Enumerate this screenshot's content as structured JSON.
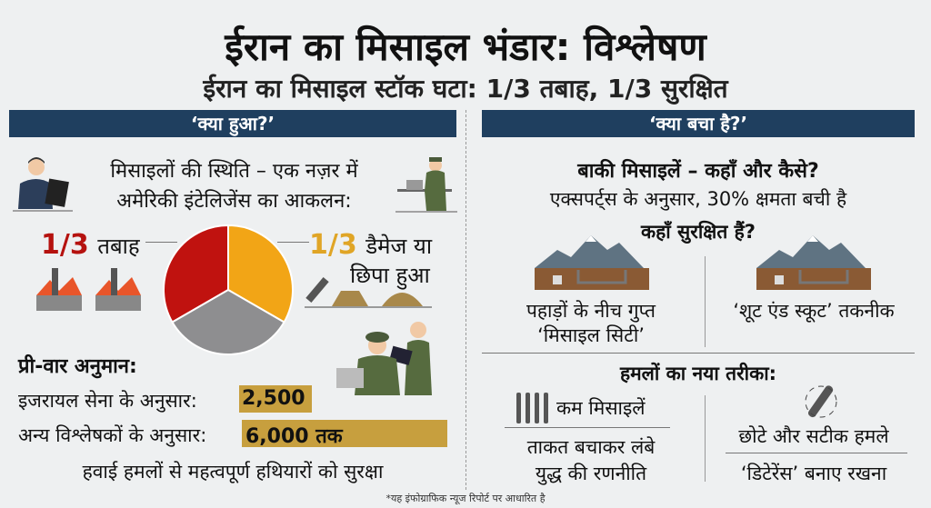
{
  "title": "ईरान का मिसाइल भंडार: विश्लेषण",
  "subtitle": "ईरान का मिसाइल स्टॉक घटा: 1/3 तबाह, 1/3 सुरक्षित",
  "left": {
    "header": "‘क्या हुआ?’",
    "heading1": "मिसाइलों की स्थिति – एक नज़र में",
    "heading2": "अमेरिकी इंटेलिजेंस का आकलन:",
    "destroyed": {
      "fraction": "1/3",
      "label": "तबाह"
    },
    "damaged": {
      "fraction": "1/3",
      "label1": "डैमेज या",
      "label2": "छिपा हुआ"
    },
    "pie": {
      "slices": [
        {
          "value": 1,
          "color": "#c0120f"
        },
        {
          "value": 1,
          "color": "#f2a516"
        },
        {
          "value": 1,
          "color": "#8e8e90"
        }
      ]
    },
    "prewar_title": "प्री-वार अनुमान:",
    "israel_label": "इजरायल सेना के अनुसार:",
    "israel_value": "2,500",
    "others_label": "अन्य विश्लेषकों के अनुसार:",
    "others_value": "6,000 तक",
    "bottom": "हवाई हमलों से महत्वपूर्ण हथियारों को सुरक्षा"
  },
  "right": {
    "header": "‘क्या बचा है?’",
    "heading1": "बाकी मिसाइलें – कहाँ और कैसे?",
    "heading2": "एक्सपर्ट्स के अनुसार, 30% क्षमता बची है",
    "heading3": "कहाँ सुरक्षित हैं?",
    "site1_line1": "पहाड़ों के नीच गुप्त",
    "site1_line2": "‘मिसाइल सिटी’",
    "site2": "‘शूट एंड स्कूट’ तकनीक",
    "attack_title": "हमलों का नया तरीका:",
    "fewer": "कम मिसाइलें",
    "strategy1": "ताकत बचाकर लंबे",
    "strategy2": "युद्ध की रणनीति",
    "precise": "छोटे और सटीक हमले",
    "deterrence": "‘डिटेरेंस’ बनाए रखना"
  },
  "footnote": "*यह इंफोग्राफिक न्यूज रिपोर्ट पर आधारित है",
  "colors": {
    "header": "#1f3f5f",
    "highlight": "#c79f3e",
    "red": "#c0120f",
    "orange": "#f2a516"
  }
}
